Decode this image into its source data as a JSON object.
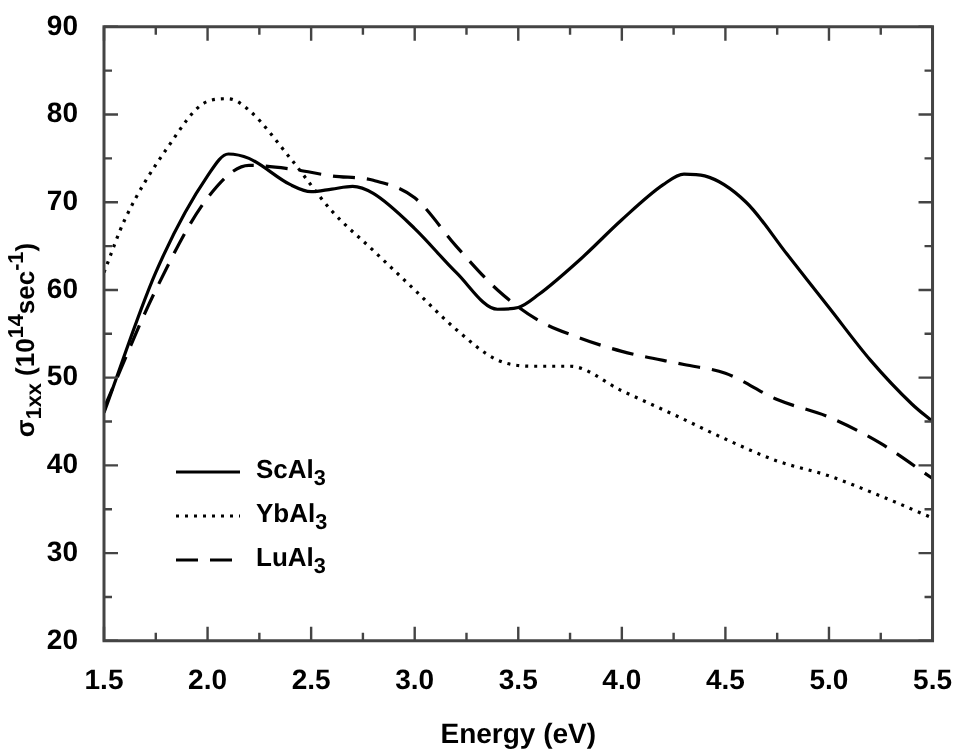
{
  "chart_data": {
    "type": "line",
    "xlabel": "Energy (eV)",
    "ylabel": "σ$_{1xx}$ (10$^{14}$sec$^{-1}$)",
    "xlim": [
      1.5,
      5.5
    ],
    "ylim": [
      20,
      90
    ],
    "xticks": [
      1.5,
      {
        "value": 1.75,
        "label": null
      },
      {
        "value": 2,
        "label": "2.0"
      },
      {
        "value": 2.25,
        "label": null
      },
      2.5,
      {
        "value": 2.75,
        "label": null
      },
      {
        "value": 3,
        "label": "3.0"
      },
      {
        "value": 3.25,
        "label": null
      },
      3.5,
      {
        "value": 3.75,
        "label": null
      },
      {
        "value": 4,
        "label": "4.0"
      },
      {
        "value": 4.25,
        "label": null
      },
      4.5,
      {
        "value": 4.75,
        "label": null
      },
      {
        "value": 5,
        "label": "5.0"
      },
      {
        "value": 5.25,
        "label": null
      },
      5.5
    ],
    "yticks": [
      20,
      {
        "value": 25,
        "label": null
      },
      30,
      {
        "value": 35,
        "label": null
      },
      40,
      {
        "value": 45,
        "label": null
      },
      50,
      {
        "value": 55,
        "label": null
      },
      60,
      {
        "value": 65,
        "label": null
      },
      70,
      {
        "value": 75,
        "label": null
      },
      80,
      {
        "value": 85,
        "label": null
      },
      90
    ],
    "grid": false,
    "legend": "bottom left",
    "marker": "none",
    "series": [
      {
        "name": "ScAl$_{3}$",
        "color": "#000000",
        "line_style": "solid",
        "x": [
          1.5,
          1.75,
          2.0,
          2.1,
          2.2,
          2.4,
          2.5,
          2.6,
          2.7,
          2.8,
          3.0,
          3.2,
          3.4,
          3.5,
          3.6,
          3.8,
          4.0,
          4.2,
          4.3,
          4.4,
          4.6,
          4.8,
          5.0,
          5.2,
          5.4,
          5.5
        ],
        "values": [
          46,
          62,
          73,
          75.5,
          75,
          72,
          71.2,
          71.5,
          71.8,
          71,
          67,
          62,
          57.8,
          58,
          59.5,
          63.5,
          68,
          72,
          73.2,
          73,
          70,
          64,
          58,
          52,
          47,
          45
        ]
      },
      {
        "name": "YbAl$_{3}$",
        "color": "#000000",
        "line_style": "dotted",
        "x": [
          1.5,
          1.6,
          1.8,
          2.0,
          2.1,
          2.2,
          2.4,
          2.6,
          2.8,
          3.0,
          3.2,
          3.4,
          3.6,
          3.75,
          4.0,
          4.25,
          4.5,
          4.75,
          5.0,
          5.25,
          5.5
        ],
        "values": [
          62,
          68,
          76,
          81.5,
          81.8,
          80.5,
          75,
          69,
          64.5,
          60,
          55.5,
          52,
          51.3,
          51.3,
          48.5,
          45.8,
          43,
          40.5,
          38.8,
          36.5,
          34
        ]
      },
      {
        "name": "LuAl$_{3}$",
        "color": "#000000",
        "line_style": "dashed",
        "x": [
          1.5,
          1.75,
          2.0,
          2.2,
          2.4,
          2.6,
          2.8,
          3.0,
          3.2,
          3.4,
          3.6,
          3.8,
          4.0,
          4.3,
          4.5,
          4.75,
          5.0,
          5.25,
          5.5
        ],
        "values": [
          46.5,
          60,
          70.5,
          74.2,
          73.8,
          73,
          72.5,
          70.5,
          65,
          60,
          56.5,
          54.5,
          53,
          51.5,
          50.5,
          47.5,
          45.5,
          42.5,
          38.5
        ]
      }
    ]
  }
}
